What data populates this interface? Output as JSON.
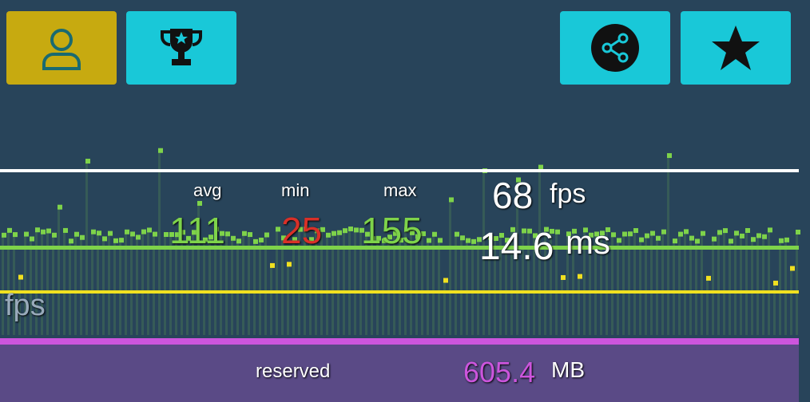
{
  "toolbar": {
    "profile_color": "#c7aa10",
    "button_color": "#19c8d8"
  },
  "fps": {
    "avg_label": "avg",
    "min_label": "min",
    "max_label": "max",
    "avg": "111",
    "min": "25",
    "max": "155",
    "current": "68",
    "fps_unit": "fps",
    "ms": "14.6",
    "ms_unit": "ms",
    "graph_label": "fps"
  },
  "memory": {
    "reserved_label": "reserved",
    "reserved": "605.4",
    "unit": "MB"
  },
  "colors": {
    "good": "#7ed34a",
    "warn": "#f0e020",
    "bad": "#e03030",
    "memory": "#cc55dd"
  }
}
